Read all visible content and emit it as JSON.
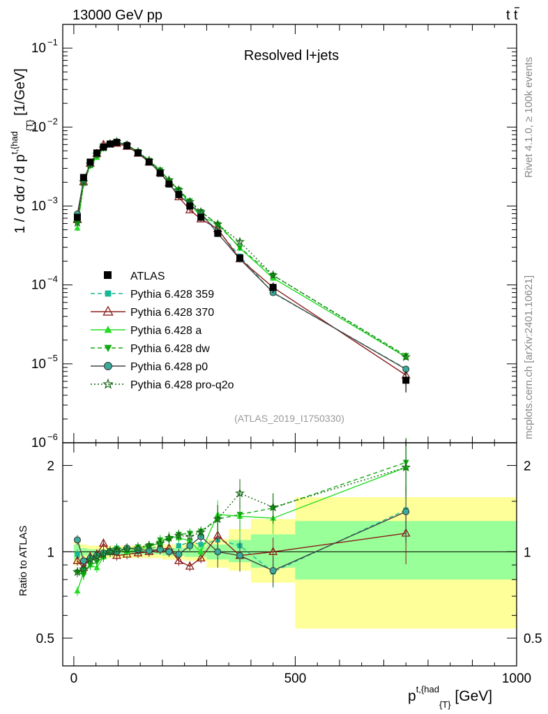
{
  "header": {
    "left": "13000 GeV pp",
    "right": "t",
    "right_bar": "t"
  },
  "side": {
    "rivet": "Rivet 4.1.0, ≥ 100k events",
    "mcplots": "mcplots.cern.ch [arXiv:2401.10621]"
  },
  "chart_data": [
    {
      "type": "line",
      "title": "Resolved l+jets",
      "analysis": "(ATLAS_2019_I1750330)",
      "ylabel": {
        "main": "1 / σ dσ / d p",
        "sup": "t,{had",
        "sub": "{T}",
        "unit": " [1/GeV]"
      },
      "yscale": "log",
      "ylim": [
        1e-06,
        0.2
      ],
      "ytick_labels": [
        "10",
        "10",
        "10",
        "10",
        "10",
        "10"
      ],
      "ytick_exps": [
        "−1",
        "−2",
        "−3",
        "−4",
        "−5",
        "−6"
      ],
      "ytick_values": [
        0.1,
        0.01,
        0.001,
        0.0001,
        1e-05,
        1e-06
      ],
      "xlim": [
        -25,
        1000
      ],
      "x": [
        8,
        22,
        37,
        52,
        67,
        82,
        97,
        120,
        145,
        170,
        195,
        215,
        237,
        262,
        287,
        325,
        375,
        450,
        750
      ],
      "data": {
        "name": "ATLAS",
        "values": [
          0.00072,
          0.0023,
          0.0036,
          0.0047,
          0.0056,
          0.0061,
          0.0064,
          0.0058,
          0.0047,
          0.0036,
          0.0026,
          0.0019,
          0.0014,
          0.001,
          0.00072,
          0.00045,
          0.00022,
          9.3e-05,
          6.2e-06
        ],
        "yerr_frac": [
          0.08,
          0.04,
          0.03,
          0.03,
          0.03,
          0.03,
          0.03,
          0.03,
          0.03,
          0.03,
          0.03,
          0.04,
          0.04,
          0.04,
          0.05,
          0.06,
          0.08,
          0.15,
          0.3
        ]
      },
      "series": [
        {
          "name": "Pythia 6.428 359",
          "color": "#17b897",
          "dash": "6,4",
          "marker": "square",
          "ratio": [
            0.98,
            0.88,
            0.95,
            0.97,
            0.98,
            1.01,
            1.03,
            1.02,
            1.0,
            1.02,
            1.05,
            1.0,
            1.05,
            1.08,
            1.06,
            1.1,
            1.05,
            0.85,
            1.4
          ]
        },
        {
          "name": "Pythia 6.428 370",
          "color": "#8b1a1a",
          "dash": "",
          "marker": "triangle-open",
          "ratio": [
            0.93,
            0.88,
            0.96,
            0.98,
            1.07,
            1.0,
            0.97,
            0.98,
            0.99,
            1.0,
            1.02,
            1.03,
            0.93,
            0.89,
            0.95,
            1.14,
            0.97,
            1.0,
            1.16
          ]
        },
        {
          "name": "Pythia 6.428 a",
          "color": "#22dd22",
          "dash": "",
          "marker": "triangle",
          "ratio": [
            0.73,
            0.85,
            0.9,
            0.88,
            0.96,
            1.0,
            1.02,
            1.0,
            1.02,
            1.04,
            1.08,
            1.13,
            1.12,
            1.09,
            1.0,
            1.35,
            1.33,
            1.31,
            1.97
          ]
        },
        {
          "name": "Pythia 6.428 dw",
          "color": "#11aa11",
          "dash": "6,4",
          "marker": "triangle-down",
          "ratio": [
            0.85,
            0.83,
            0.9,
            0.92,
            0.96,
            1.0,
            1.02,
            1.02,
            1.04,
            1.05,
            1.1,
            1.1,
            1.15,
            1.16,
            1.18,
            1.3,
            1.35,
            1.42,
            2.05
          ]
        },
        {
          "name": "Pythia 6.428 p0",
          "color": "#444444",
          "dash": "",
          "marker": "circle-open",
          "ratio": [
            1.1,
            0.93,
            0.95,
            0.97,
            0.99,
            1.0,
            1.0,
            1.03,
            1.02,
            1.01,
            1.02,
            1.0,
            0.98,
            1.05,
            1.13,
            1.0,
            0.97,
            0.86,
            1.38
          ]
        },
        {
          "name": "Pythia 6.428 pro-q2o",
          "color": "#116611",
          "dash": "2,3",
          "marker": "star",
          "ratio": [
            0.85,
            0.87,
            0.94,
            0.96,
            0.98,
            1.0,
            1.02,
            1.02,
            1.03,
            1.05,
            1.07,
            1.12,
            1.14,
            1.13,
            1.17,
            1.3,
            1.6,
            1.43,
            1.97
          ]
        }
      ],
      "legend": "left-middle"
    },
    {
      "type": "line",
      "ylabel": "Ratio to ATLAS",
      "xlabel": {
        "main": "p",
        "sup": "t,{had",
        "sub": "{T}",
        "unit": " [GeV]"
      },
      "yscale": "log",
      "ylim": [
        0.4,
        2.4
      ],
      "ytick_labels": [
        "2",
        "1",
        "0.5"
      ],
      "ytick_values": [
        2,
        1,
        0.5
      ],
      "xtick_labels": [
        "0",
        "500",
        "1000"
      ],
      "xtick_values": [
        0,
        500,
        1000
      ],
      "bands": [
        {
          "x0": 0,
          "x1": 15,
          "yellow": [
            0.9,
            1.1
          ],
          "green": [
            0.94,
            1.06
          ]
        },
        {
          "x0": 15,
          "x1": 30,
          "yellow": [
            0.94,
            1.06
          ],
          "green": [
            0.97,
            1.03
          ]
        },
        {
          "x0": 30,
          "x1": 200,
          "yellow": [
            0.95,
            1.05
          ],
          "green": [
            0.98,
            1.02
          ]
        },
        {
          "x0": 200,
          "x1": 250,
          "yellow": [
            0.94,
            1.06
          ],
          "green": [
            0.97,
            1.03
          ]
        },
        {
          "x0": 250,
          "x1": 300,
          "yellow": [
            0.93,
            1.08
          ],
          "green": [
            0.96,
            1.04
          ]
        },
        {
          "x0": 300,
          "x1": 350,
          "yellow": [
            0.88,
            1.11
          ],
          "green": [
            0.94,
            1.06
          ]
        },
        {
          "x0": 350,
          "x1": 400,
          "yellow": [
            0.86,
            1.2
          ],
          "green": [
            0.92,
            1.1
          ]
        },
        {
          "x0": 400,
          "x1": 500,
          "yellow": [
            0.78,
            1.3
          ],
          "green": [
            0.88,
            1.15
          ]
        },
        {
          "x0": 500,
          "x1": 1000,
          "yellow": [
            0.54,
            1.55
          ],
          "green": [
            0.8,
            1.28
          ]
        }
      ]
    }
  ]
}
